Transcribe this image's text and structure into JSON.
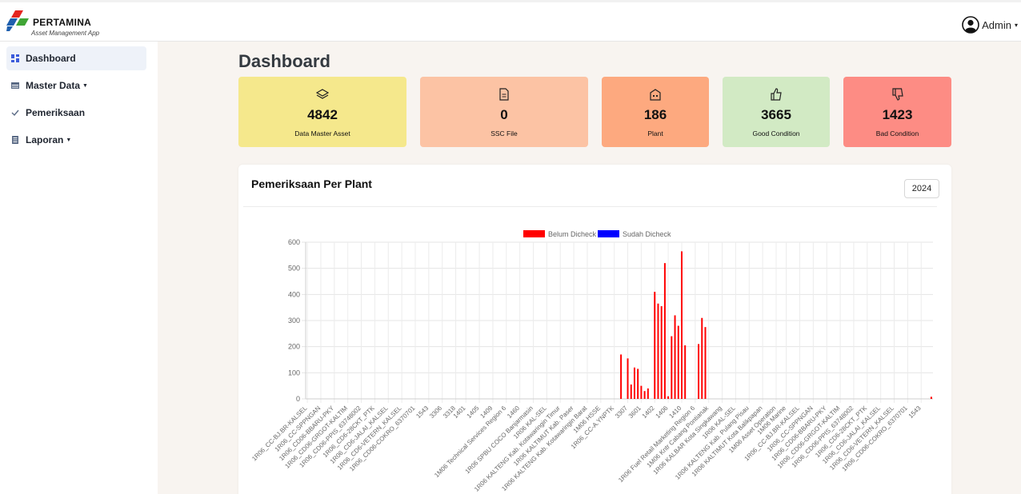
{
  "header": {
    "brand": "PERTAMINA",
    "subtitle": "Asset Management App",
    "user": "Admin",
    "icons": {
      "logo": "pertamina-logo",
      "user": "user-circle-icon",
      "caret": "caret-down-icon"
    }
  },
  "sidebar": {
    "items": [
      {
        "label": "Dashboard",
        "icon": "dashboard-icon",
        "active": true,
        "dropdown": false
      },
      {
        "label": "Master Data",
        "icon": "table-icon",
        "active": false,
        "dropdown": true
      },
      {
        "label": "Pemeriksaan",
        "icon": "check-icon",
        "active": false,
        "dropdown": false
      },
      {
        "label": "Laporan",
        "icon": "report-icon",
        "active": false,
        "dropdown": true
      }
    ]
  },
  "main": {
    "title": "Dashboard",
    "cards": [
      {
        "value": "4842",
        "label": "Data Master Asset",
        "icon": "layers-icon",
        "color": "#f5e88c"
      },
      {
        "value": "0",
        "label": "SSC File",
        "icon": "file-icon",
        "color": "#fcc3a4"
      },
      {
        "value": "186",
        "label": "Plant",
        "icon": "building-icon",
        "color": "#fda97f"
      },
      {
        "value": "3665",
        "label": "Good Condition",
        "icon": "thumbs-up-icon",
        "color": "#d2eac4"
      },
      {
        "value": "1423",
        "label": "Bad Condition",
        "icon": "thumbs-down-icon",
        "color": "#fd8c84"
      }
    ],
    "panel": {
      "title": "Pemeriksaan Per Plant",
      "year": "2024"
    }
  },
  "chart_data": {
    "type": "bar",
    "title": "",
    "xlabel": "",
    "ylabel": "",
    "ylim": [
      0,
      600
    ],
    "yticks": [
      0,
      100,
      200,
      300,
      400,
      500,
      600
    ],
    "grid": true,
    "legend": "top-center",
    "series": [
      {
        "name": "Belum Dicheck",
        "color": "#ff0000"
      },
      {
        "name": "Sudah Dicheck",
        "color": "#0000ff"
      }
    ],
    "xtick_labels": [
      "1R06_CC-BJ.BR-KALSEL",
      "1R06_CC-SPPNGAN",
      "1R06_CD06-BBARU-PKY",
      "1R06_CD06-GRGOT-KALTIM",
      "1R06_CD06-PPIS_63748002",
      "1R06_CD6-28CKT_PTK",
      "1R06_CD6-JALAI_KALSEL",
      "1R06_CD6-VETERN_KALSEL",
      "1R06_CD06-COKRO_6370701",
      "1543",
      "3306",
      "3318",
      "1401",
      "1405",
      "1409",
      "1M06 Technical Services Region 6",
      "1460",
      "1R06 SPBU COCO Banjarmasin",
      "1R06 KAL-SEL",
      "1R06 KALTENG Kab. Kotawaringin Timur",
      "1R06 KALTIMUT Kab. Paser",
      "1R06 KALTENG Kab. Kotawaringin Barat",
      "1M06 HSSE",
      "1R06_CC-A.YNPTK",
      "3307",
      "3601",
      "1402",
      "1406",
      "1410",
      "1R06 Fuel Retail Marketing Region 6",
      "1M06 Kntr Cabang Pontianak",
      "1R06 KALBAR Kota Singkawang",
      "1R06 KAL-SEL",
      "1R06 KALTENG Kab. Pulang Pisau",
      "1R06 KALTIMUT Kota Balikpapan",
      "1M06 Asset Operation",
      "1M06 Marine",
      "1R06_CC-BJ.BR-KALSEL",
      "1R06_CC-SPPNGAN",
      "1R06_CD06-BBARU-PKY",
      "1R06_CD06-GRGOT-KALTIM",
      "1R06_CD06-PPIS_63748002",
      "1R06_CD6-28CKT_PTK",
      "1R06_CD6-JALAI_KALSEL",
      "1R06_CD6-VETERN_KALSEL",
      "1R06_CD06-COKRO_6370701",
      "1543"
    ],
    "n_categories": 186,
    "values_belum": [
      0,
      0,
      0,
      0,
      0,
      0,
      0,
      0,
      0,
      0,
      0,
      0,
      0,
      0,
      0,
      0,
      0,
      0,
      0,
      0,
      0,
      0,
      0,
      0,
      0,
      0,
      0,
      0,
      0,
      0,
      0,
      0,
      0,
      0,
      0,
      0,
      0,
      0,
      0,
      0,
      0,
      0,
      0,
      0,
      0,
      0,
      0,
      0,
      0,
      0,
      0,
      0,
      0,
      0,
      0,
      0,
      0,
      0,
      0,
      0,
      0,
      0,
      0,
      0,
      0,
      0,
      0,
      0,
      0,
      0,
      0,
      0,
      0,
      0,
      0,
      0,
      0,
      0,
      0,
      0,
      0,
      0,
      0,
      0,
      0,
      0,
      0,
      0,
      0,
      0,
      0,
      0,
      0,
      170,
      0,
      155,
      55,
      120,
      115,
      50,
      30,
      40,
      0,
      410,
      365,
      355,
      520,
      10,
      240,
      320,
      280,
      565,
      205,
      0,
      0,
      0,
      210,
      310,
      275,
      0,
      0,
      0,
      0,
      0,
      0,
      0,
      0,
      0,
      0,
      0,
      0,
      0,
      0,
      0,
      0,
      0,
      0,
      0,
      0,
      0,
      0,
      0,
      0,
      0,
      0,
      0,
      0,
      0,
      0,
      0,
      0,
      0,
      0,
      0,
      0,
      0,
      0,
      0,
      0,
      0,
      0,
      0,
      0,
      0,
      0,
      0,
      0,
      0,
      0,
      0,
      0,
      0,
      0,
      0,
      0,
      0,
      0,
      0,
      0,
      0,
      0,
      0,
      0,
      0,
      0,
      8
    ],
    "values_sudah": []
  }
}
